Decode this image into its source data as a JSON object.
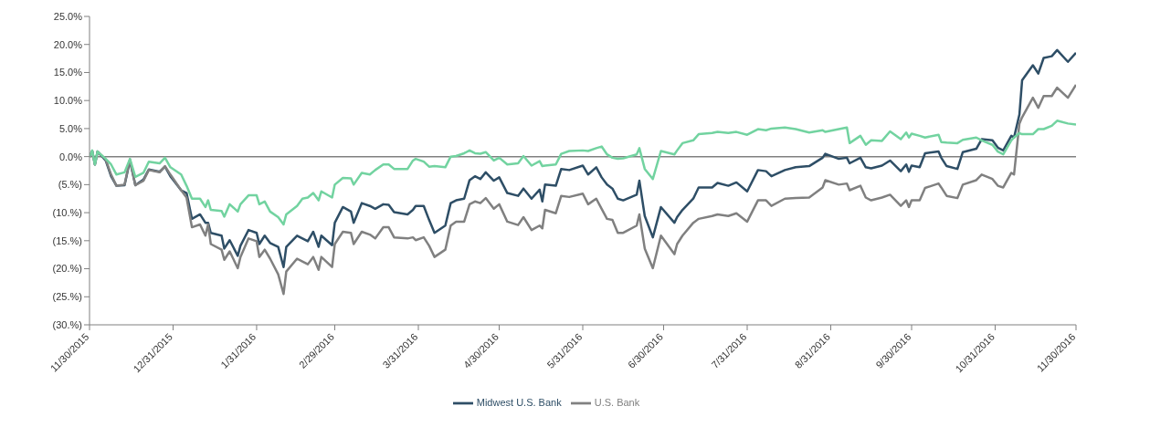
{
  "chart_data": {
    "type": "line",
    "x": [
      "2015-11-30",
      "2015-12-01",
      "2015-12-02",
      "2015-12-03",
      "2015-12-06",
      "2015-12-08",
      "2015-12-10",
      "2015-12-13",
      "2015-12-15",
      "2015-12-17",
      "2015-12-20",
      "2015-12-22",
      "2015-12-26",
      "2015-12-28",
      "2015-12-30",
      "2016-01-03",
      "2016-01-05",
      "2016-01-07",
      "2016-01-10",
      "2016-01-12",
      "2016-01-13",
      "2016-01-14",
      "2016-01-18",
      "2016-01-19",
      "2016-01-21",
      "2016-01-24",
      "2016-01-25",
      "2016-01-28",
      "2016-01-31",
      "2016-02-01",
      "2016-02-03",
      "2016-02-05",
      "2016-02-08",
      "2016-02-10",
      "2016-02-11",
      "2016-02-15",
      "2016-02-17",
      "2016-02-19",
      "2016-02-21",
      "2016-02-23",
      "2016-02-24",
      "2016-02-28",
      "2016-02-29",
      "2016-03-03",
      "2016-03-06",
      "2016-03-07",
      "2016-03-10",
      "2016-03-13",
      "2016-03-15",
      "2016-03-18",
      "2016-03-20",
      "2016-03-22",
      "2016-03-27",
      "2016-03-29",
      "2016-03-30",
      "2016-04-02",
      "2016-04-04",
      "2016-04-06",
      "2016-04-10",
      "2016-04-12",
      "2016-04-14",
      "2016-04-17",
      "2016-04-19",
      "2016-04-21",
      "2016-04-23",
      "2016-04-25",
      "2016-04-28",
      "2016-04-30",
      "2016-05-03",
      "2016-05-07",
      "2016-05-09",
      "2016-05-12",
      "2016-05-15",
      "2016-05-16",
      "2016-05-17",
      "2016-05-21",
      "2016-05-23",
      "2016-05-26",
      "2016-05-31",
      "2016-06-02",
      "2016-06-05",
      "2016-06-07",
      "2016-06-09",
      "2016-06-11",
      "2016-06-13",
      "2016-06-15",
      "2016-06-20",
      "2016-06-21",
      "2016-06-23",
      "2016-06-26",
      "2016-06-29",
      "2016-07-04",
      "2016-07-05",
      "2016-07-07",
      "2016-07-11",
      "2016-07-13",
      "2016-07-18",
      "2016-07-20",
      "2016-07-24",
      "2016-07-27",
      "2016-07-31",
      "2016-08-04",
      "2016-08-07",
      "2016-08-09",
      "2016-08-14",
      "2016-08-18",
      "2016-08-23",
      "2016-08-28",
      "2016-08-29",
      "2016-09-03",
      "2016-09-06",
      "2016-09-07",
      "2016-09-11",
      "2016-09-13",
      "2016-09-15",
      "2016-09-19",
      "2016-09-22",
      "2016-09-26",
      "2016-09-28",
      "2016-09-29",
      "2016-09-30",
      "2016-10-03",
      "2016-10-05",
      "2016-10-10",
      "2016-10-11",
      "2016-10-13",
      "2016-10-17",
      "2016-10-19",
      "2016-10-24",
      "2016-10-26",
      "2016-10-30",
      "2016-11-01",
      "2016-11-03",
      "2016-11-06",
      "2016-11-07",
      "2016-11-09",
      "2016-11-10",
      "2016-11-14",
      "2016-11-16",
      "2016-11-18",
      "2016-11-21",
      "2016-11-23",
      "2016-11-27",
      "2016-11-30"
    ],
    "series": [
      {
        "name": "Midwest U.S. Bank",
        "color": "#2e4e66",
        "values": [
          0,
          1.0,
          -1.4,
          0.9,
          -0.7,
          -3.5,
          -5.2,
          -5.1,
          -0.7,
          -5.1,
          -4.1,
          -2.3,
          -2.7,
          -1.8,
          -3.5,
          -6.0,
          -6.5,
          -11.1,
          -10.3,
          -11.8,
          -11.8,
          -13.6,
          -14.1,
          -16.4,
          -14.9,
          -17.7,
          -15.9,
          -13.1,
          -13.6,
          -15.6,
          -14.1,
          -15.4,
          -16.1,
          -19.7,
          -16.1,
          -14.1,
          -14.6,
          -15.1,
          -13.4,
          -16.1,
          -14.1,
          -15.8,
          -11.8,
          -9.0,
          -9.8,
          -11.8,
          -8.3,
          -8.8,
          -9.3,
          -8.5,
          -8.6,
          -9.9,
          -10.3,
          -9.5,
          -8.8,
          -8.8,
          -11.3,
          -13.6,
          -12.3,
          -8.3,
          -7.8,
          -7.5,
          -4.2,
          -3.5,
          -4.0,
          -2.8,
          -4.3,
          -3.7,
          -6.5,
          -7.0,
          -5.7,
          -7.5,
          -5.9,
          -8.0,
          -5.0,
          -5.2,
          -2.2,
          -2.4,
          -1.6,
          -3.2,
          -1.9,
          -3.7,
          -5.0,
          -5.7,
          -7.5,
          -7.8,
          -6.8,
          -4.3,
          -10.6,
          -14.4,
          -9.0,
          -11.8,
          -10.8,
          -9.5,
          -7.5,
          -5.5,
          -5.5,
          -4.7,
          -5.2,
          -4.6,
          -6.2,
          -2.4,
          -2.6,
          -3.5,
          -2.4,
          -1.9,
          -1.7,
          -0.2,
          0.5,
          -0.4,
          -0.2,
          -1.2,
          -0.2,
          -1.9,
          -2.1,
          -1.6,
          -0.7,
          -2.6,
          -1.4,
          -2.7,
          -1.6,
          -1.9,
          0.6,
          0.9,
          -0.2,
          -1.7,
          -2.2,
          0.8,
          1.4,
          3.1,
          2.9,
          1.6,
          1.1,
          3.7,
          3.4,
          7.5,
          13.6,
          16.3,
          14.8,
          17.6,
          17.9,
          19.0,
          16.9,
          18.5
        ]
      },
      {
        "name": "U.S. Bank",
        "color": "#808080",
        "values": [
          0,
          1.0,
          -1.4,
          0.9,
          -0.5,
          -3.2,
          -5.2,
          -5.0,
          -0.5,
          -5.1,
          -4.3,
          -2.4,
          -2.8,
          -1.7,
          -3.2,
          -6.0,
          -7.3,
          -12.6,
          -12.1,
          -14.1,
          -12.1,
          -15.6,
          -16.6,
          -18.4,
          -16.9,
          -19.9,
          -17.9,
          -14.6,
          -15.1,
          -17.9,
          -16.6,
          -18.2,
          -21.0,
          -24.5,
          -20.5,
          -18.2,
          -18.7,
          -19.2,
          -17.9,
          -20.2,
          -17.9,
          -19.7,
          -15.6,
          -13.4,
          -13.6,
          -15.6,
          -13.4,
          -13.9,
          -14.6,
          -12.6,
          -12.6,
          -14.4,
          -14.6,
          -14.4,
          -14.9,
          -14.4,
          -15.9,
          -17.9,
          -16.6,
          -12.3,
          -11.6,
          -11.6,
          -8.5,
          -8.0,
          -8.3,
          -7.4,
          -9.3,
          -8.5,
          -11.6,
          -12.2,
          -10.8,
          -13.1,
          -12.3,
          -12.8,
          -9.5,
          -10.1,
          -7.0,
          -7.2,
          -6.6,
          -8.5,
          -7.5,
          -9.3,
          -11.1,
          -11.3,
          -13.6,
          -13.6,
          -12.3,
          -10.3,
          -16.4,
          -19.9,
          -14.1,
          -17.4,
          -15.6,
          -14.1,
          -11.8,
          -11.1,
          -10.6,
          -10.3,
          -10.6,
          -10.1,
          -11.6,
          -7.8,
          -7.8,
          -8.8,
          -7.5,
          -7.4,
          -7.3,
          -5.5,
          -4.2,
          -5.0,
          -4.8,
          -6.0,
          -5.2,
          -7.3,
          -7.8,
          -7.3,
          -6.8,
          -8.8,
          -7.8,
          -9.0,
          -7.8,
          -7.8,
          -5.6,
          -4.8,
          -5.5,
          -7.0,
          -7.4,
          -5.0,
          -4.2,
          -3.2,
          -4.0,
          -5.2,
          -5.5,
          -2.9,
          -3.2,
          5.9,
          7.0,
          10.5,
          8.7,
          10.8,
          10.8,
          12.3,
          10.5,
          12.8
        ]
      },
      {
        "color": "#72d3a0",
        "values": [
          0,
          1.1,
          -1.4,
          0.9,
          -0.4,
          -1.4,
          -3.2,
          -2.8,
          -0.4,
          -3.6,
          -2.9,
          -0.9,
          -1.2,
          -0.2,
          -1.9,
          -3.2,
          -5.2,
          -7.5,
          -7.5,
          -9.0,
          -7.8,
          -9.5,
          -9.7,
          -10.7,
          -8.5,
          -9.8,
          -8.5,
          -6.9,
          -6.9,
          -8.5,
          -8.0,
          -9.8,
          -10.8,
          -12.1,
          -10.3,
          -8.8,
          -7.5,
          -7.3,
          -6.5,
          -7.8,
          -6.2,
          -7.3,
          -5.0,
          -3.8,
          -3.9,
          -5.0,
          -2.9,
          -3.2,
          -2.4,
          -1.4,
          -1.4,
          -2.2,
          -2.2,
          -0.7,
          -0.4,
          -0.9,
          -1.8,
          -1.7,
          -1.9,
          0,
          0.1,
          0.6,
          1.1,
          0.6,
          0.5,
          0.8,
          -0.7,
          -0.2,
          -1.4,
          -1.2,
          0.1,
          -1.6,
          -0.8,
          -1.7,
          -1.6,
          -1.4,
          0.5,
          1.0,
          1.1,
          1.0,
          1.5,
          1.8,
          0.4,
          -0.2,
          -0.4,
          -0.3,
          0.4,
          1.5,
          -2.2,
          -4.0,
          1.0,
          0.4,
          1.1,
          2.4,
          2.9,
          4.0,
          4.2,
          4.4,
          4.2,
          4.4,
          3.9,
          4.9,
          4.7,
          5.0,
          5.2,
          4.9,
          4.3,
          4.7,
          4.4,
          4.9,
          5.2,
          2.4,
          3.7,
          2.1,
          2.9,
          2.8,
          4.5,
          3.1,
          4.3,
          3.4,
          4.1,
          3.7,
          3.4,
          3.9,
          2.6,
          2.5,
          2.4,
          3.0,
          3.4,
          2.9,
          2.1,
          0.9,
          0.4,
          2.9,
          3.4,
          4.2,
          4.0,
          4.0,
          4.9,
          4.9,
          5.5,
          6.4,
          5.9,
          5.7
        ]
      }
    ],
    "xlim": [
      "2015-11-30",
      "2016-11-30"
    ],
    "xticks": [
      {
        "value": "2015-11-30",
        "label": "11/30/2015"
      },
      {
        "value": "2015-12-31",
        "label": "12/31/2015"
      },
      {
        "value": "2016-01-31",
        "label": "1/31/2016"
      },
      {
        "value": "2016-02-29",
        "label": "2/29/2016"
      },
      {
        "value": "2016-03-31",
        "label": "3/31/2016"
      },
      {
        "value": "2016-04-30",
        "label": "4/30/2016"
      },
      {
        "value": "2016-05-31",
        "label": "5/31/2016"
      },
      {
        "value": "2016-06-30",
        "label": "6/30/2016"
      },
      {
        "value": "2016-07-31",
        "label": "7/31/2016"
      },
      {
        "value": "2016-08-31",
        "label": "8/31/2016"
      },
      {
        "value": "2016-09-30",
        "label": "9/30/2016"
      },
      {
        "value": "2016-10-31",
        "label": "10/31/2016"
      },
      {
        "value": "2016-11-30",
        "label": "11/30/2016"
      }
    ],
    "ylim": [
      -30,
      25
    ],
    "yticks": [
      {
        "value": 25,
        "label": "25.0%"
      },
      {
        "value": 20,
        "label": "20.0%"
      },
      {
        "value": 15,
        "label": "15.0%"
      },
      {
        "value": 10,
        "label": "10.0%"
      },
      {
        "value": 5,
        "label": "5.0%"
      },
      {
        "value": 0,
        "label": "0.0%"
      },
      {
        "value": -5,
        "label": "(5.%)"
      },
      {
        "value": -10,
        "label": "(10.%)"
      },
      {
        "value": -15,
        "label": "(15.%)"
      },
      {
        "value": -20,
        "label": "(20.%)"
      },
      {
        "value": -25,
        "label": "(25.%)"
      },
      {
        "value": -30,
        "label": "(30.%)"
      }
    ],
    "ref_lines": [
      {
        "axis": "y",
        "value": 0,
        "color": "#808080"
      }
    ],
    "grid": false,
    "legend": "bottom",
    "marker": "none",
    "line_style": "solid"
  }
}
